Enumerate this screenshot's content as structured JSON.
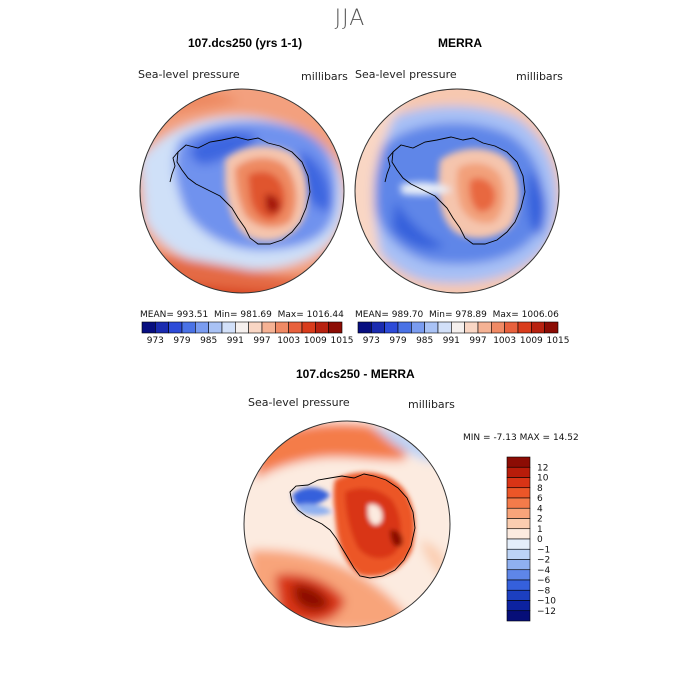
{
  "title": "JJA",
  "panels": [
    {
      "title": "107.dcs250 (yrs 1-1)",
      "variable": "Sea-level pressure",
      "units": "millibars",
      "mean": "993.51",
      "min": "981.69",
      "max": "1016.44"
    },
    {
      "title": "MERRA",
      "variable": "Sea-level pressure",
      "units": "millibars",
      "mean": "989.70",
      "min": "978.89",
      "max": "1006.06"
    }
  ],
  "labels": {
    "mean": "MEAN=",
    "min": "Min=",
    "max": "Max=",
    "dmin": "MIN =",
    "dmax": "MAX ="
  },
  "diff": {
    "title": "107.dcs250 - MERRA",
    "variable": "Sea-level pressure",
    "units": "millibars",
    "min": "-7.13",
    "max": "14.52"
  },
  "abs_levels": [
    "973",
    "979",
    "985",
    "991",
    "997",
    "1003",
    "1009",
    "1015"
  ],
  "abs_colors": [
    "#070e80",
    "#1a2bb0",
    "#2d4bd8",
    "#4a72e6",
    "#7a9cf0",
    "#a9c2f5",
    "#d2e0f9",
    "#f5f0ee",
    "#f9d6c4",
    "#f5b294",
    "#f08a65",
    "#e8613d",
    "#d93c1c",
    "#b82210",
    "#8c0c04"
  ],
  "diff_levels": [
    "12",
    "10",
    "8",
    "6",
    "4",
    "2",
    "1",
    "0",
    "−1",
    "−2",
    "−4",
    "−6",
    "−8",
    "−10",
    "−12"
  ],
  "diff_colors": [
    "#8c0c04",
    "#b81c0a",
    "#d93416",
    "#ec5628",
    "#f47b4a",
    "#f8a47a",
    "#fbcdb0",
    "#fcebe0",
    "#e4eefa",
    "#bcd3f6",
    "#8fb0f0",
    "#5e86e8",
    "#3560dc",
    "#1c3fc0",
    "#0c22a0",
    "#060e78"
  ]
}
